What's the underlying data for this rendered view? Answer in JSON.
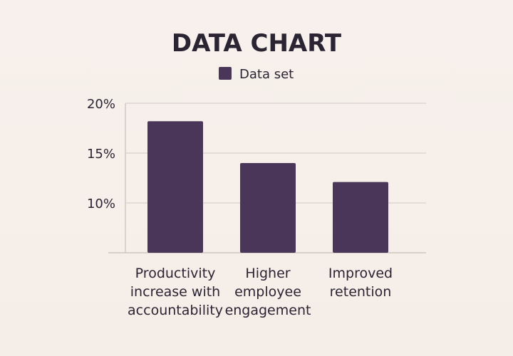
{
  "chart_data": {
    "type": "bar",
    "title": "DATA CHART",
    "xlabel": "",
    "ylabel": "",
    "categories": [
      [
        "Productivity",
        "increase with",
        "accountability"
      ],
      [
        "Higher",
        "employee",
        "engagement"
      ],
      [
        "Improved",
        "retention"
      ]
    ],
    "series": [
      {
        "name": "Data set",
        "values": [
          18.2,
          14.0,
          12.1
        ]
      }
    ],
    "y_ticks": [
      "10%",
      "15%",
      "20%"
    ],
    "ylim": [
      5,
      20
    ],
    "grid": true,
    "legend": "top-center",
    "bar_color": "#4a3658"
  }
}
